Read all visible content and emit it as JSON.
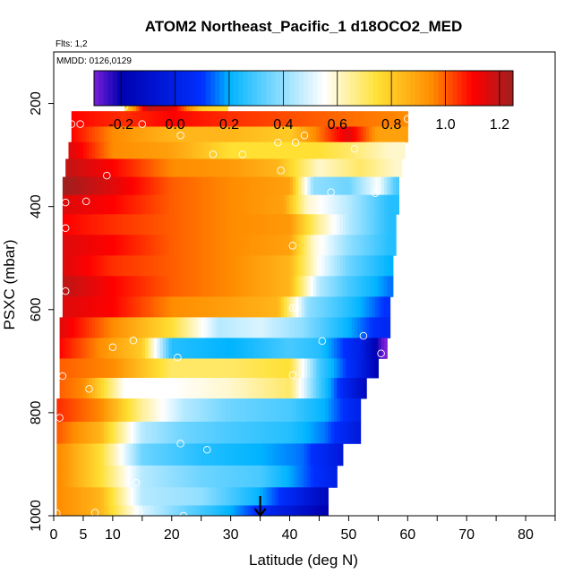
{
  "chart_data": {
    "type": "heatmap",
    "title": "ATOM2 Northeast_Pacific_1 d18OCO2_MED",
    "subtitle": "Flts: 1,2",
    "annotation": "MMDD: 0126,0129",
    "xlabel": "Latitude (deg N)",
    "ylabel": "PSXC (mbar)",
    "xlim": [
      0,
      85
    ],
    "ylim": [
      1000,
      100
    ],
    "x_ticks": [
      0,
      5,
      10,
      20,
      30,
      40,
      50,
      60,
      70,
      80
    ],
    "x_tick_labels": [
      "0",
      "5",
      "10",
      "20",
      "30",
      "40",
      "50",
      "60",
      "70",
      "80"
    ],
    "x_minor_ticks": [
      15,
      25,
      35,
      45,
      55,
      65,
      75,
      85
    ],
    "y_ticks": [
      200,
      400,
      600,
      800,
      1000
    ],
    "y_tick_labels": [
      "200",
      "400",
      "600",
      "800",
      "1000"
    ],
    "colorbar": {
      "min": -0.3,
      "max": 1.25,
      "tick_values": [
        -0.2,
        0.0,
        0.2,
        0.4,
        0.6,
        0.8,
        1.0,
        1.2
      ],
      "tick_labels": [
        "-0.2",
        "0.0",
        "0.2",
        "0.4",
        "0.6",
        "0.8",
        "1.0",
        "1.2"
      ],
      "colors": [
        "#7b1fd9",
        "#0000b0",
        "#0030ff",
        "#00b4ff",
        "#ffffff",
        "#ffe033",
        "#ff8c00",
        "#ff0000",
        "#a01f1f"
      ],
      "stops": [
        -0.3,
        -0.2,
        0.1,
        0.2,
        0.55,
        0.75,
        0.95,
        1.1,
        1.25
      ]
    },
    "layers": [
      {
        "p": 200,
        "xmin": 12,
        "xmax": 29.5,
        "values": [
          [
            12,
            0.75
          ],
          [
            16,
            1.2
          ],
          [
            20,
            1.15
          ],
          [
            25,
            0.8
          ],
          [
            29,
            0.75
          ]
        ]
      },
      {
        "p": 230,
        "xmin": 3,
        "xmax": 60,
        "values": [
          [
            3,
            1.1
          ],
          [
            12,
            1.05
          ],
          [
            20,
            1.1
          ],
          [
            30,
            1.05
          ],
          [
            45,
            1.0
          ],
          [
            60,
            0.95
          ]
        ]
      },
      {
        "p": 260,
        "xmin": 3,
        "xmax": 60,
        "values": [
          [
            3,
            1.1
          ],
          [
            10,
            0.95
          ],
          [
            20,
            0.85
          ],
          [
            30,
            0.85
          ],
          [
            40,
            0.8
          ],
          [
            50,
            1.15
          ],
          [
            55,
            0.9
          ],
          [
            59,
            0.9
          ]
        ]
      },
      {
        "p": 290,
        "xmin": 2.5,
        "xmax": 59.5,
        "values": [
          [
            3,
            1.15
          ],
          [
            10,
            0.95
          ],
          [
            20,
            0.9
          ],
          [
            30,
            0.75
          ],
          [
            38,
            0.75
          ],
          [
            45,
            0.75
          ],
          [
            50,
            0.7
          ],
          [
            57,
            0.6
          ]
        ]
      },
      {
        "p": 325,
        "xmin": 2,
        "xmax": 59,
        "values": [
          [
            2,
            1.2
          ],
          [
            10,
            1.1
          ],
          [
            20,
            0.95
          ],
          [
            30,
            0.92
          ],
          [
            38,
            0.85
          ],
          [
            45,
            0.6
          ],
          [
            52,
            0.7
          ],
          [
            58,
            0.6
          ]
        ]
      },
      {
        "p": 360,
        "xmin": 1.5,
        "xmax": 58.5,
        "values": [
          [
            2,
            1.25
          ],
          [
            10,
            1.15
          ],
          [
            20,
            1.0
          ],
          [
            30,
            0.95
          ],
          [
            40,
            0.9
          ],
          [
            44,
            0.4
          ],
          [
            50,
            0.35
          ],
          [
            55,
            0.55
          ],
          [
            58,
            0.3
          ]
        ]
      },
      {
        "p": 395,
        "xmin": 1.5,
        "xmax": 58.5,
        "values": [
          [
            2,
            1.15
          ],
          [
            10,
            1.1
          ],
          [
            20,
            1.0
          ],
          [
            30,
            0.95
          ],
          [
            39,
            0.9
          ],
          [
            43,
            0.6
          ],
          [
            50,
            0.45
          ],
          [
            57,
            0.25
          ]
        ]
      },
      {
        "p": 435,
        "xmin": 1.5,
        "xmax": 58,
        "values": [
          [
            2,
            1.1
          ],
          [
            10,
            1.05
          ],
          [
            20,
            1.0
          ],
          [
            30,
            0.95
          ],
          [
            40,
            0.92
          ],
          [
            45,
            0.65
          ],
          [
            50,
            0.45
          ],
          [
            57,
            0.25
          ]
        ]
      },
      {
        "p": 475,
        "xmin": 1.5,
        "xmax": 58,
        "values": [
          [
            2,
            1.15
          ],
          [
            10,
            1.1
          ],
          [
            20,
            1.0
          ],
          [
            30,
            0.95
          ],
          [
            40,
            0.9
          ],
          [
            44,
            0.6
          ],
          [
            50,
            0.4
          ],
          [
            57,
            0.25
          ]
        ]
      },
      {
        "p": 515,
        "xmin": 1.5,
        "xmax": 57.5,
        "values": [
          [
            2,
            1.15
          ],
          [
            10,
            1.05
          ],
          [
            20,
            1.0
          ],
          [
            30,
            0.95
          ],
          [
            40,
            0.85
          ],
          [
            45,
            0.55
          ],
          [
            50,
            0.35
          ],
          [
            57,
            0.2
          ]
        ]
      },
      {
        "p": 555,
        "xmin": 1.5,
        "xmax": 57.5,
        "values": [
          [
            2,
            1.2
          ],
          [
            10,
            1.1
          ],
          [
            20,
            1.0
          ],
          [
            30,
            0.95
          ],
          [
            40,
            0.85
          ],
          [
            45,
            0.45
          ],
          [
            50,
            0.3
          ],
          [
            57,
            0.15
          ]
        ]
      },
      {
        "p": 595,
        "xmin": 1.5,
        "xmax": 57,
        "values": [
          [
            2,
            1.15
          ],
          [
            10,
            1.1
          ],
          [
            20,
            0.95
          ],
          [
            30,
            0.9
          ],
          [
            38,
            0.85
          ],
          [
            43,
            0.4
          ],
          [
            50,
            0.25
          ],
          [
            56,
            0.1
          ]
        ]
      },
      {
        "p": 635,
        "xmin": 1,
        "xmax": 57,
        "values": [
          [
            1,
            1.15
          ],
          [
            10,
            0.95
          ],
          [
            20,
            0.75
          ],
          [
            28,
            0.45
          ],
          [
            35,
            0.5
          ],
          [
            42,
            0.4
          ],
          [
            50,
            0.2
          ],
          [
            56,
            0.05
          ]
        ]
      },
      {
        "p": 675,
        "xmin": 1,
        "xmax": 56.5,
        "values": [
          [
            1,
            1.1
          ],
          [
            10,
            0.9
          ],
          [
            15,
            0.8
          ],
          [
            20,
            0.25
          ],
          [
            30,
            0.2
          ],
          [
            40,
            0.3
          ],
          [
            45,
            0.25
          ],
          [
            52,
            0.0
          ],
          [
            56,
            -0.3
          ]
        ]
      },
      {
        "p": 715,
        "xmin": 1,
        "xmax": 55,
        "values": [
          [
            1,
            1.0
          ],
          [
            10,
            0.95
          ],
          [
            20,
            0.7
          ],
          [
            30,
            0.7
          ],
          [
            40,
            0.75
          ],
          [
            45,
            0.3
          ],
          [
            52,
            0.0
          ],
          [
            55,
            -0.2
          ]
        ]
      },
      {
        "p": 750,
        "xmin": 1,
        "xmax": 53,
        "values": [
          [
            1,
            1.0
          ],
          [
            5,
            0.95
          ],
          [
            12,
            0.55
          ],
          [
            20,
            0.55
          ],
          [
            30,
            0.6
          ],
          [
            40,
            0.7
          ],
          [
            45,
            0.3
          ],
          [
            50,
            0.0
          ],
          [
            53,
            -0.15
          ]
        ]
      },
      {
        "p": 795,
        "xmin": 0.5,
        "xmax": 52,
        "values": [
          [
            1,
            1.05
          ],
          [
            8,
            0.95
          ],
          [
            15,
            0.65
          ],
          [
            22,
            0.45
          ],
          [
            30,
            0.35
          ],
          [
            40,
            0.3
          ],
          [
            46,
            0.2
          ],
          [
            52,
            0.0
          ]
        ]
      },
      {
        "p": 840,
        "xmin": 0.5,
        "xmax": 52,
        "values": [
          [
            1,
            1.0
          ],
          [
            8,
            0.85
          ],
          [
            15,
            0.45
          ],
          [
            22,
            0.35
          ],
          [
            30,
            0.3
          ],
          [
            40,
            0.25
          ],
          [
            46,
            0.15
          ],
          [
            52,
            -0.05
          ]
        ]
      },
      {
        "p": 880,
        "xmin": 0.5,
        "xmax": 49,
        "values": [
          [
            1,
            0.95
          ],
          [
            8,
            0.75
          ],
          [
            15,
            0.35
          ],
          [
            25,
            0.25
          ],
          [
            35,
            0.2
          ],
          [
            42,
            0.15
          ],
          [
            49,
            -0.05
          ]
        ]
      },
      {
        "p": 925,
        "xmin": 0.5,
        "xmax": 48,
        "values": [
          [
            1,
            0.95
          ],
          [
            8,
            0.75
          ],
          [
            15,
            0.45
          ],
          [
            25,
            0.35
          ],
          [
            35,
            0.3
          ],
          [
            42,
            0.15
          ],
          [
            48,
            0.0
          ]
        ]
      },
      {
        "p": 965,
        "xmin": 0.5,
        "xmax": 46.5,
        "values": [
          [
            1,
            0.95
          ],
          [
            8,
            0.85
          ],
          [
            15,
            0.45
          ],
          [
            25,
            0.4
          ],
          [
            35,
            0.2
          ],
          [
            40,
            0.05
          ],
          [
            46,
            -0.15
          ]
        ]
      },
      {
        "p": 995,
        "xmin": 0.5,
        "xmax": 46.5,
        "values": [
          [
            1,
            0.95
          ],
          [
            8,
            0.85
          ],
          [
            15,
            0.5
          ],
          [
            22,
            0.35
          ],
          [
            30,
            0.2
          ],
          [
            38,
            0.0
          ],
          [
            46,
            -0.2
          ]
        ]
      }
    ],
    "sample_points": [
      [
        16.5,
        194
      ],
      [
        29.5,
        182
      ],
      [
        12,
        206
      ],
      [
        3,
        240
      ],
      [
        4.5,
        240
      ],
      [
        15,
        240
      ],
      [
        60,
        230
      ],
      [
        21.5,
        262
      ],
      [
        42.5,
        262
      ],
      [
        38,
        276
      ],
      [
        41,
        276
      ],
      [
        51,
        288
      ],
      [
        27,
        299
      ],
      [
        32,
        299
      ],
      [
        9,
        340
      ],
      [
        38.5,
        330
      ],
      [
        2,
        392
      ],
      [
        5.5,
        390
      ],
      [
        47,
        372
      ],
      [
        54.5,
        374
      ],
      [
        2,
        442
      ],
      [
        40.5,
        476
      ],
      [
        2,
        564
      ],
      [
        40.5,
        597
      ],
      [
        41,
        596
      ],
      [
        10,
        673
      ],
      [
        13.5,
        660
      ],
      [
        21,
        693
      ],
      [
        45.5,
        661
      ],
      [
        52.5,
        651
      ],
      [
        55.5,
        685
      ],
      [
        57,
        703
      ],
      [
        1.5,
        729
      ],
      [
        6,
        754
      ],
      [
        40.5,
        727
      ],
      [
        1,
        810
      ],
      [
        21.5,
        860
      ],
      [
        26,
        872
      ],
      [
        14,
        936
      ],
      [
        0.5,
        995
      ],
      [
        7,
        994
      ],
      [
        14.5,
        994
      ],
      [
        22,
        1000
      ]
    ],
    "arrow_marker": {
      "x": 35,
      "pressure": 1000
    }
  }
}
